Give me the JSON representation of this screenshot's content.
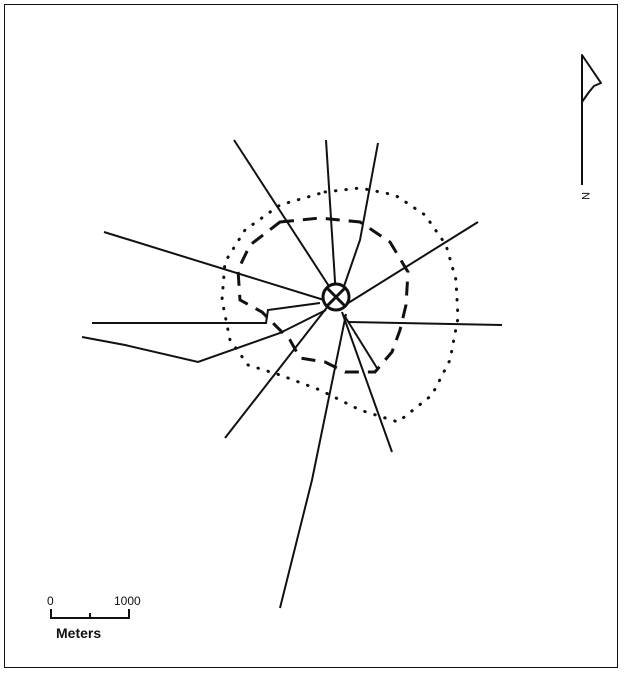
{
  "scale_bar": {
    "start_label": "0",
    "end_label": "1000",
    "unit_label": "Meters"
  },
  "north_arrow": {
    "label": "N"
  },
  "colors": {
    "ink": "#111111",
    "background": "#ffffff"
  }
}
